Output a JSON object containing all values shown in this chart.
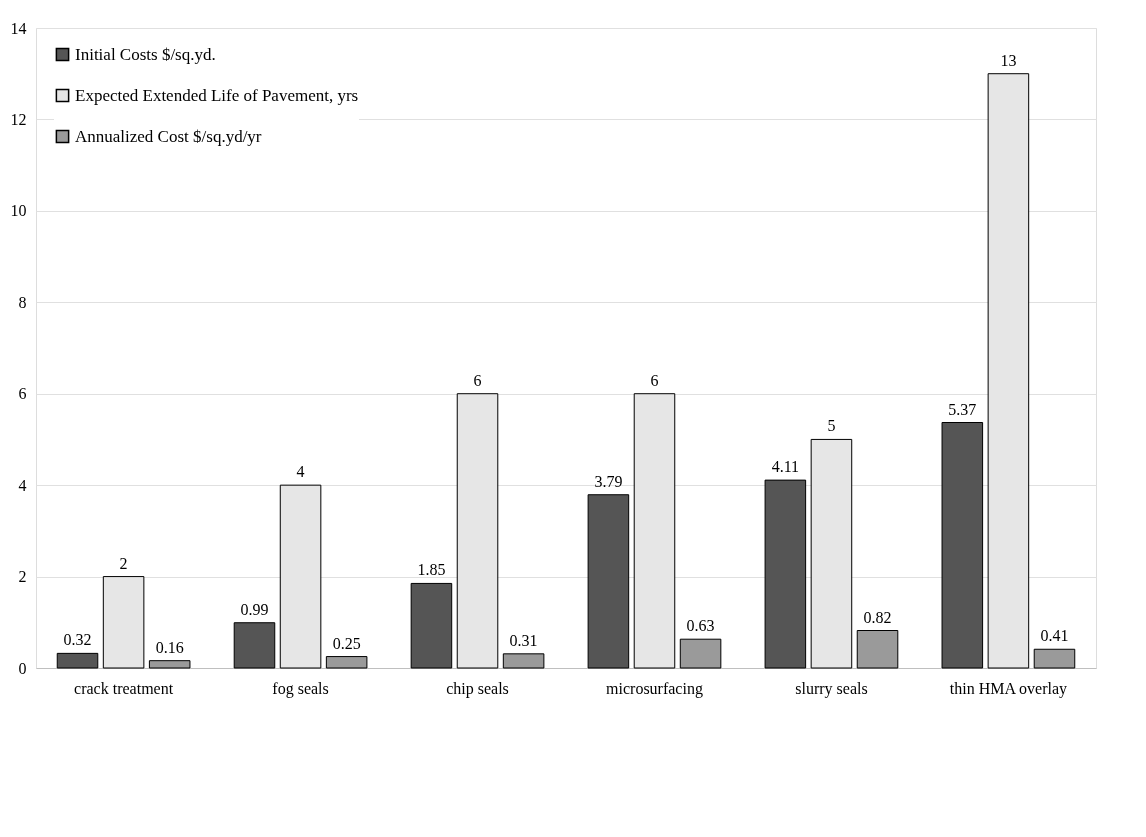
{
  "chart_data": {
    "type": "bar",
    "categories": [
      "crack treatment",
      "fog seals",
      "chip seals",
      "microsurfacing",
      "slurry seals",
      "thin HMA overlay"
    ],
    "series": [
      {
        "name": "Initial Costs $/sq.yd.",
        "color": "#555555",
        "values": [
          0.32,
          0.99,
          1.85,
          3.79,
          4.11,
          5.37
        ]
      },
      {
        "name": "Expected Extended Life of Pavement, yrs",
        "color": "#e6e6e6",
        "values": [
          2,
          4,
          6,
          6,
          5,
          13
        ]
      },
      {
        "name": "Annualized Cost $/sq.yd/yr",
        "color": "#9a9a9a",
        "values": [
          0.16,
          0.25,
          0.31,
          0.63,
          0.82,
          0.41
        ]
      }
    ],
    "ylim": [
      0,
      14
    ],
    "yticks": [
      0,
      2,
      4,
      6,
      8,
      10,
      12,
      14
    ],
    "grid": "y",
    "legend": "top left",
    "data_labels": true
  }
}
